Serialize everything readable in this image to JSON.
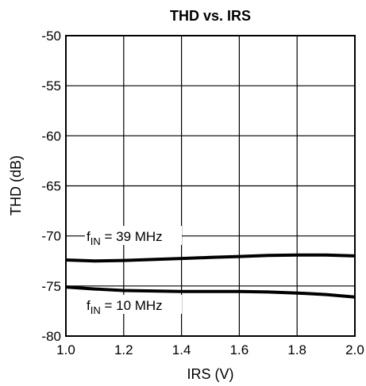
{
  "chart_data": {
    "type": "line",
    "title": "THD vs. IRS",
    "xlabel": "IRS (V)",
    "ylabel": "THD (dB)",
    "xlim": [
      1.0,
      2.0
    ],
    "ylim": [
      -80,
      -50
    ],
    "xticks": [
      "1.0",
      "1.2",
      "1.4",
      "1.6",
      "1.8",
      "2.0"
    ],
    "yticks": [
      "-50",
      "-55",
      "-60",
      "-65",
      "-70",
      "-75",
      "-80"
    ],
    "grid": true,
    "series": [
      {
        "name": "39 MHz",
        "x": [
          1.0,
          1.1,
          1.2,
          1.3,
          1.4,
          1.5,
          1.6,
          1.7,
          1.8,
          1.9,
          2.0
        ],
        "y": [
          -72.4,
          -72.5,
          -72.45,
          -72.35,
          -72.25,
          -72.15,
          -72.05,
          -71.95,
          -71.9,
          -71.9,
          -72.0
        ]
      },
      {
        "name": "10 MHz",
        "x": [
          1.0,
          1.1,
          1.2,
          1.3,
          1.4,
          1.5,
          1.6,
          1.7,
          1.8,
          1.9,
          2.0
        ],
        "y": [
          -75.1,
          -75.3,
          -75.45,
          -75.5,
          -75.55,
          -75.55,
          -75.55,
          -75.6,
          -75.7,
          -75.85,
          -76.1
        ]
      }
    ],
    "annotations": [
      {
        "prefix": "f",
        "subscript": "IN",
        "text": " = 39 MHz"
      },
      {
        "prefix": "f",
        "subscript": "IN",
        "text": " = 10 MHz"
      }
    ]
  }
}
